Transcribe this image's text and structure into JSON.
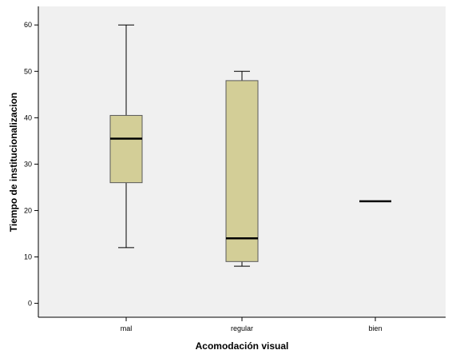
{
  "chart_data": {
    "type": "boxplot",
    "xlabel": "Acomodación visual",
    "ylabel": "Tiempo de institucionalizacion",
    "ylim": [
      -3,
      64
    ],
    "yticks": [
      0,
      10,
      20,
      30,
      40,
      50,
      60
    ],
    "grid": false,
    "categories": [
      "mal",
      "regular",
      "bien"
    ],
    "boxes": [
      {
        "category": "mal",
        "min": 12,
        "q1": 26,
        "median": 35.5,
        "q3": 40.5,
        "max": 60
      },
      {
        "category": "regular",
        "min": 8,
        "q1": 9,
        "median": 14,
        "q3": 48,
        "max": 50
      },
      {
        "category": "bien",
        "min": 22,
        "q1": 22,
        "median": 22,
        "q3": 22,
        "max": 22
      }
    ],
    "colors": {
      "plot_background": "#f0f0f0",
      "box_fill": "#d3ce97",
      "box_stroke": "#5a5a5a",
      "line": "#000000"
    }
  }
}
